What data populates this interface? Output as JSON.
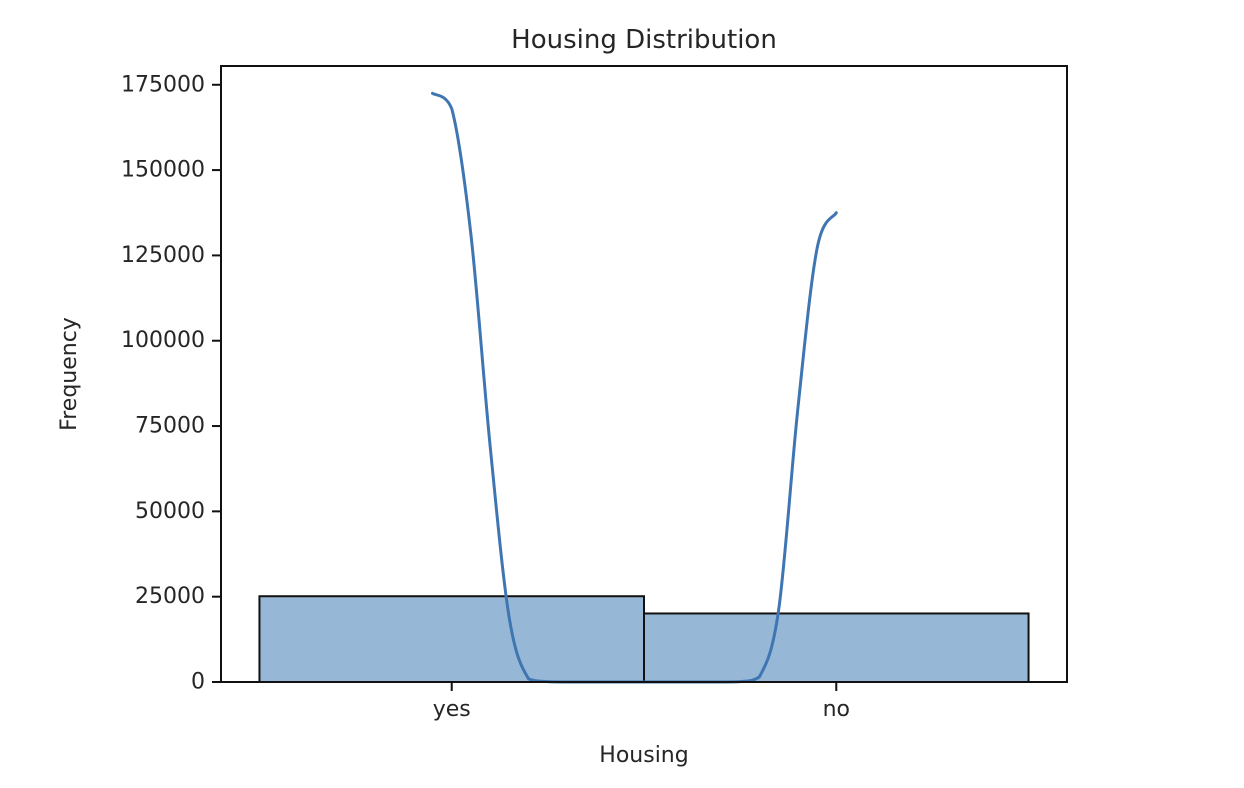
{
  "chart_data": {
    "type": "bar",
    "title": "Housing Distribution",
    "xlabel": "Housing",
    "ylabel": "Frequency",
    "categories": [
      "yes",
      "no"
    ],
    "values": [
      25130,
      20081
    ],
    "ylim": [
      0,
      180500
    ],
    "yticks": [
      0,
      25000,
      50000,
      75000,
      100000,
      125000,
      150000,
      175000
    ],
    "grid": false,
    "kde": {
      "x": [
        -0.05,
        0,
        0.05,
        0.1,
        0.15,
        0.2,
        0.25,
        0.3,
        0.35,
        0.4,
        0.45,
        0.5,
        0.55,
        0.6,
        0.65,
        0.7,
        0.75,
        0.8,
        0.85,
        0.9,
        0.95,
        1.0
      ],
      "y": [
        172500,
        168000,
        131000,
        69000,
        18500,
        900,
        100,
        0,
        0,
        0,
        0,
        0,
        0,
        0,
        0,
        0,
        100,
        1500,
        21000,
        80000,
        127000,
        137500
      ]
    },
    "colors": {
      "bar_fill": "#97b7d6",
      "bar_edge": "#111111",
      "kde_line": "#3f76b2",
      "axis": "#111111",
      "text": "#262626"
    }
  }
}
